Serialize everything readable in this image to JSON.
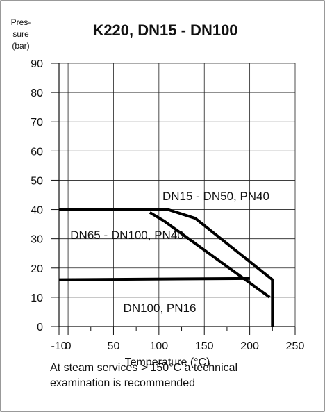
{
  "chart_data": {
    "type": "line",
    "title": "K220, DN15 - DN100",
    "ylabel_lines": [
      "Pres-",
      "sure",
      "(bar)"
    ],
    "xlabel": "Temperature (°C)",
    "xlim": [
      -10,
      250
    ],
    "ylim": [
      0,
      90
    ],
    "x_ticks": [
      "-10",
      "0",
      "50",
      "100",
      "150",
      "200",
      "250"
    ],
    "x_tick_values": [
      -10,
      0,
      50,
      100,
      150,
      200,
      250
    ],
    "y_ticks": [
      "0",
      "10",
      "20",
      "30",
      "40",
      "50",
      "60",
      "70",
      "80",
      "90"
    ],
    "y_tick_values": [
      0,
      10,
      20,
      30,
      40,
      50,
      60,
      70,
      80,
      90
    ],
    "grid": true,
    "series": [
      {
        "name": "DN15 - DN50, PN40",
        "x": [
          -10,
          110,
          140,
          225,
          225
        ],
        "y": [
          40,
          40,
          37,
          16,
          0
        ]
      },
      {
        "name": "DN65 - DN100, PN40",
        "x": [
          90,
          106,
          222
        ],
        "y": [
          39,
          36,
          10
        ]
      },
      {
        "name": "DN100, PN16",
        "x": [
          -10,
          200
        ],
        "y": [
          16,
          16.4
        ]
      }
    ],
    "annotations": {
      "dn15": "DN15 - DN50, PN40",
      "dn65": "DN65 - DN100, PN40",
      "dn100": "DN100, PN16"
    }
  },
  "footnote": "At steam services > 150°C a technical examination is recommended"
}
